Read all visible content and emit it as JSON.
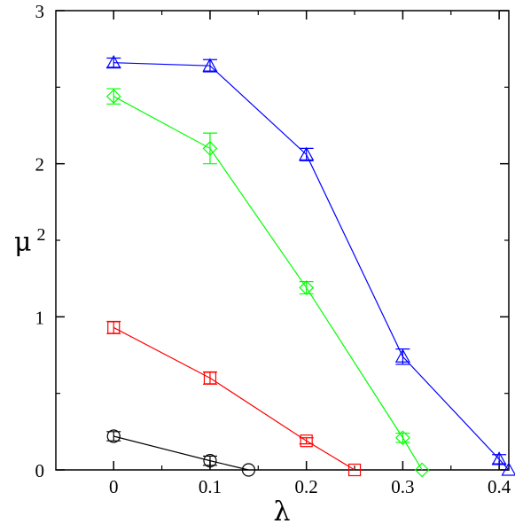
{
  "chart_data": {
    "type": "line",
    "title": "",
    "xlabel": "λ",
    "ylabel": {
      "base": "μ",
      "superscript": "2"
    },
    "xlim": [
      -0.06,
      0.41
    ],
    "ylim": [
      0,
      3
    ],
    "x_ticks": [
      {
        "value": 0,
        "label": "0"
      },
      {
        "value": 0.1,
        "label": "0.1"
      },
      {
        "value": 0.2,
        "label": "0.2"
      },
      {
        "value": 0.3,
        "label": "0.3"
      },
      {
        "value": 0.4,
        "label": "0.4"
      }
    ],
    "y_ticks": [
      {
        "value": 0,
        "label": "0"
      },
      {
        "value": 1,
        "label": "1"
      },
      {
        "value": 2,
        "label": "2"
      },
      {
        "value": 3,
        "label": "3"
      }
    ],
    "grid": false,
    "series": [
      {
        "color": "#000000",
        "marker": "circle",
        "points": [
          {
            "x": 0,
            "y": 0.22,
            "err": 0.03
          },
          {
            "x": 0.1,
            "y": 0.06,
            "err": 0.03
          },
          {
            "x": 0.14,
            "y": 0.0,
            "err": 0
          }
        ]
      },
      {
        "color": "#ff0000",
        "marker": "square",
        "points": [
          {
            "x": 0,
            "y": 0.93,
            "err": 0.04
          },
          {
            "x": 0.1,
            "y": 0.6,
            "err": 0.04
          },
          {
            "x": 0.2,
            "y": 0.19,
            "err": 0.02
          },
          {
            "x": 0.25,
            "y": 0.0,
            "err": 0
          }
        ]
      },
      {
        "color": "#00ff00",
        "marker": "diamond",
        "points": [
          {
            "x": 0,
            "y": 2.44,
            "err": 0.05
          },
          {
            "x": 0.1,
            "y": 2.1,
            "err": 0.1
          },
          {
            "x": 0.2,
            "y": 1.19,
            "err": 0.04
          },
          {
            "x": 0.3,
            "y": 0.21,
            "err": 0.03
          },
          {
            "x": 0.32,
            "y": 0.0,
            "err": 0
          }
        ]
      },
      {
        "color": "#0000ff",
        "marker": "triangle",
        "points": [
          {
            "x": 0,
            "y": 2.66,
            "err": 0.03
          },
          {
            "x": 0.1,
            "y": 2.64,
            "err": 0.04
          },
          {
            "x": 0.2,
            "y": 2.06,
            "err": 0.04
          },
          {
            "x": 0.3,
            "y": 0.74,
            "err": 0.05
          },
          {
            "x": 0.4,
            "y": 0.07,
            "err": 0.03
          },
          {
            "x": 0.41,
            "y": 0.0,
            "err": 0
          }
        ]
      }
    ]
  }
}
